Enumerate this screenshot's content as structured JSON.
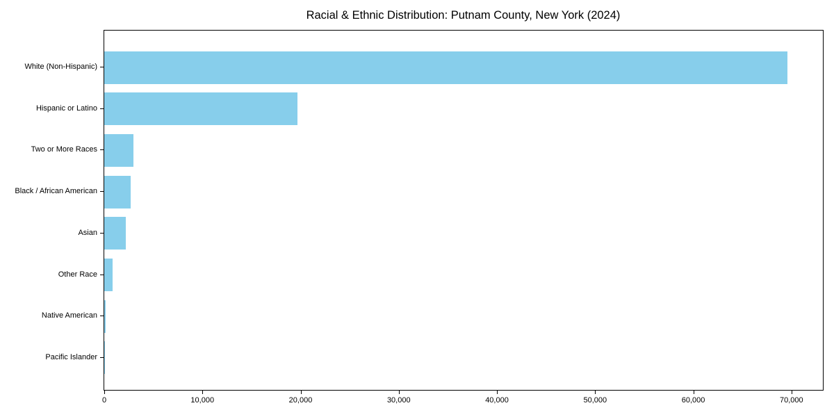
{
  "chart_data": {
    "type": "bar",
    "orientation": "horizontal",
    "title": "Racial & Ethnic Distribution: Putnam County, New York (2024)",
    "xlabel": "",
    "ylabel": "",
    "categories": [
      "White (Non-Hispanic)",
      "Hispanic or Latino",
      "Two or More Races",
      "Black / African American",
      "Asian",
      "Other Race",
      "Native American",
      "Pacific Islander"
    ],
    "values": [
      69600,
      19650,
      2950,
      2700,
      2200,
      850,
      150,
      30
    ],
    "xlim": [
      0,
      73200
    ],
    "x_ticks": [
      0,
      10000,
      20000,
      30000,
      40000,
      50000,
      60000,
      70000
    ],
    "x_tick_labels": [
      "0",
      "10,000",
      "20,000",
      "30,000",
      "40,000",
      "50,000",
      "60,000",
      "70,000"
    ],
    "bar_color": "#87CEEB",
    "spine_color": "#000000",
    "grid": false,
    "legend": null
  }
}
